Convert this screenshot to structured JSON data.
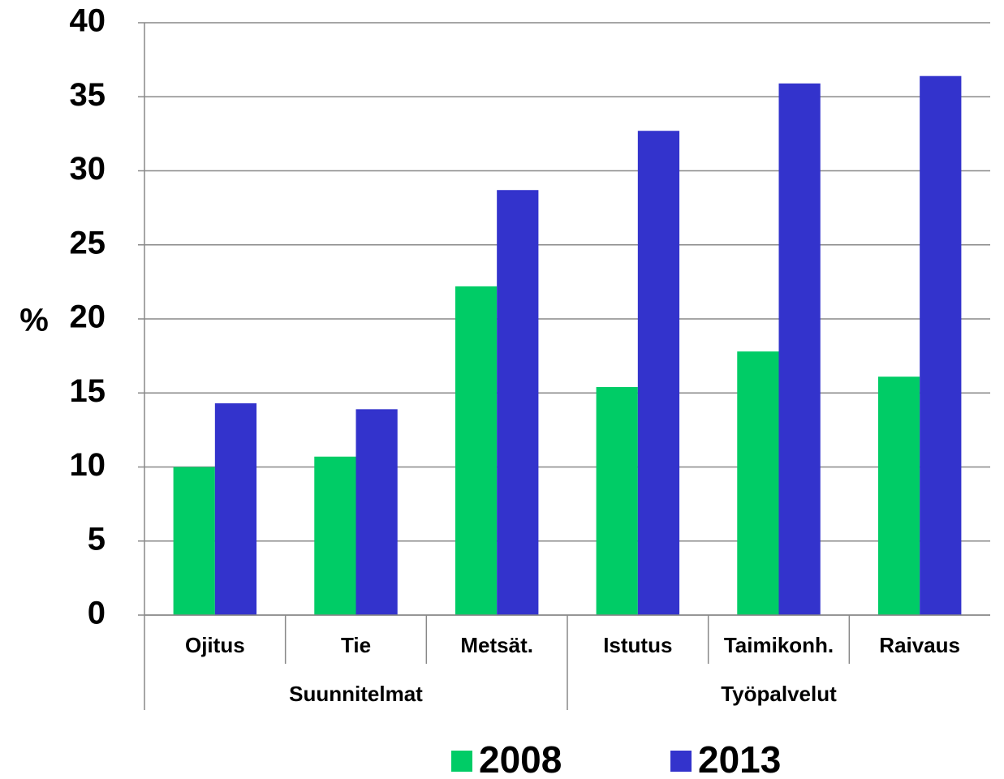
{
  "chart_data": {
    "type": "bar",
    "ylabel": "%",
    "groups": [
      {
        "name": "Suunnitelmat",
        "categories": [
          "Ojitus",
          "Tie",
          "Metsät."
        ]
      },
      {
        "name": "Työpalvelut",
        "categories": [
          "Istutus",
          "Taimikonh.",
          "Raivaus"
        ]
      }
    ],
    "series": [
      {
        "name": "2008",
        "color": "#00cc66",
        "values": [
          10.0,
          10.7,
          22.2,
          15.4,
          17.8,
          16.1
        ]
      },
      {
        "name": "2013",
        "color": "#3333cc",
        "values": [
          14.3,
          13.9,
          28.7,
          32.7,
          35.9,
          36.4
        ]
      }
    ],
    "ylim": [
      0,
      40
    ],
    "yticks": [
      0,
      5,
      10,
      15,
      20,
      25,
      30,
      35,
      40
    ],
    "grid": true,
    "legend": "bottom"
  }
}
